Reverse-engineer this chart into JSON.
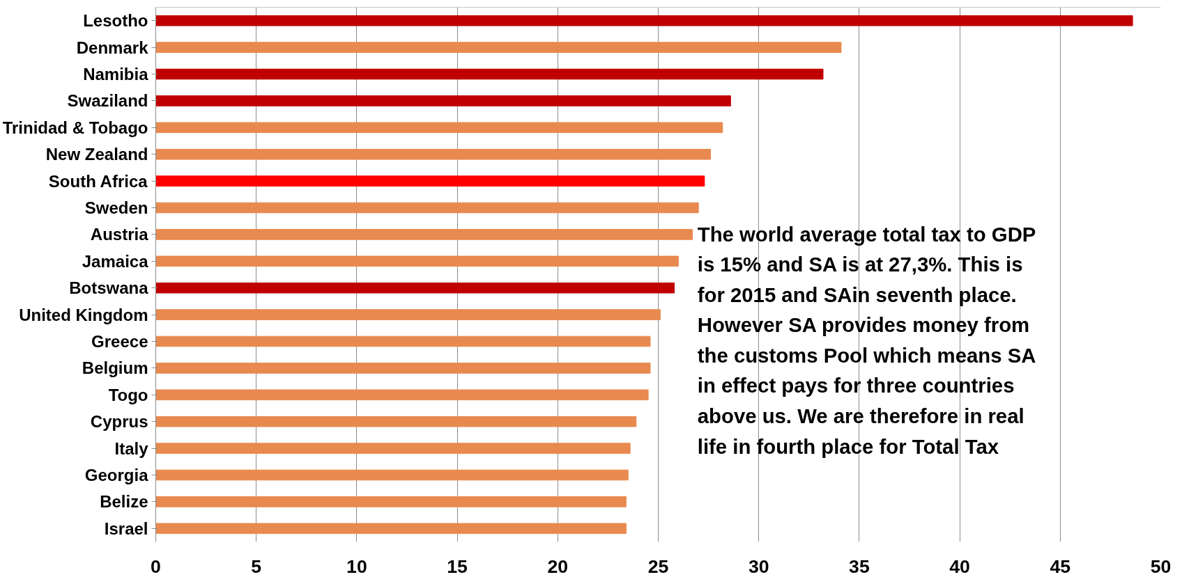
{
  "chart_data": {
    "type": "bar",
    "orientation": "horizontal",
    "categories": [
      "Lesotho",
      "Denmark",
      "Namibia",
      "Swaziland",
      "Trinidad & Tobago",
      "New Zealand",
      "South Africa",
      "Sweden",
      "Austria",
      "Jamaica",
      "Botswana",
      "United Kingdom",
      "Greece",
      "Belgium",
      "Togo",
      "Cyprus",
      "Italy",
      "Georgia",
      "Belize",
      "Israel"
    ],
    "values": [
      48.6,
      34.1,
      33.2,
      28.6,
      28.2,
      27.6,
      27.3,
      27.0,
      26.7,
      26.0,
      25.8,
      25.1,
      24.6,
      24.6,
      24.5,
      23.9,
      23.6,
      23.5,
      23.4,
      23.4
    ],
    "colors": [
      "#c00000",
      "#e8894f",
      "#c00000",
      "#c00000",
      "#e8894f",
      "#e8894f",
      "#ff0000",
      "#e8894f",
      "#e8894f",
      "#e8894f",
      "#c00000",
      "#e8894f",
      "#e8894f",
      "#e8894f",
      "#e8894f",
      "#e8894f",
      "#e8894f",
      "#e8894f",
      "#e8894f",
      "#e8894f"
    ],
    "xlim": [
      0,
      50
    ],
    "xticks": [
      0,
      5,
      10,
      15,
      20,
      25,
      30,
      35,
      40,
      45,
      50
    ],
    "grid": "x",
    "annotations": [
      "The world average total tax to GDP\nis 15% and SA is at 27,3%. This is\nfor 2015 and SAin seventh place.\nHowever SA provides money from\nthe customs Pool which means SA\nin effect pays for three countries\nabove us. We are therefore in real\nlife in fourth place for  Total Tax"
    ]
  }
}
